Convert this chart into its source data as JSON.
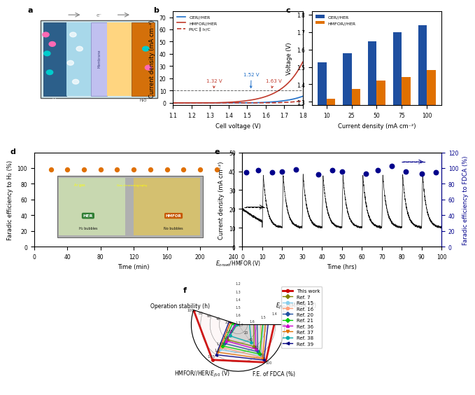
{
  "panel_b": {
    "xlabel": "Cell voltage (V)",
    "ylabel": "Current density (mA cm⁻²)",
    "xlim": [
      1.1,
      1.8
    ],
    "ylim": [
      -2,
      75
    ],
    "dashed_y": 10,
    "ann_1_32": {
      "x": 1.32,
      "label": "1.32 V",
      "color": "#c0392b"
    },
    "ann_1_52": {
      "x": 1.52,
      "label": "1.52 V",
      "color": "#1e6ec8"
    },
    "ann_1_63": {
      "x": 1.63,
      "label": "1.63 V",
      "color": "#c0392b"
    },
    "color_oer": "#1e6ec8",
    "color_hmfor": "#c0392b"
  },
  "panel_c": {
    "xlabel": "Current density (mA cm⁻²)",
    "ylabel": "Voltage (V)",
    "ylim": [
      1.28,
      1.82
    ],
    "yticks": [
      1.3,
      1.4,
      1.5,
      1.6,
      1.7,
      1.8
    ],
    "categories": [
      10,
      25,
      50,
      75,
      100
    ],
    "oer_her": [
      1.525,
      1.578,
      1.648,
      1.7,
      1.738
    ],
    "hmfor_her": [
      1.316,
      1.372,
      1.422,
      1.442,
      1.482
    ],
    "color_oer": "#1e4fa0",
    "color_hmfor": "#e07000"
  },
  "panel_d": {
    "xlabel": "Time (min)",
    "ylabel": "Faradic efficiency to H₂ (%)",
    "xlim": [
      0,
      240
    ],
    "ylim": [
      0,
      120
    ],
    "yticks": [
      0,
      20,
      40,
      60,
      80,
      100
    ],
    "xticks": [
      0,
      40,
      80,
      120,
      160,
      200,
      240
    ],
    "dot_times": [
      20,
      40,
      60,
      80,
      100,
      120,
      140,
      160,
      180,
      200,
      220
    ],
    "dot_values": [
      98,
      98,
      98,
      98,
      98,
      98,
      98,
      98,
      98,
      98,
      98
    ],
    "dot_color": "#e07000"
  },
  "panel_e": {
    "xlabel": "Time (hrs)",
    "ylabel_left": "Current density (mA cm⁻²)",
    "ylabel_right": "Faradic efficiency to FDCA (%)",
    "xlim": [
      0,
      100
    ],
    "ylim_left": [
      0,
      50
    ],
    "ylim_right": [
      0,
      120
    ],
    "xticks": [
      0,
      10,
      20,
      30,
      40,
      50,
      60,
      70,
      80,
      90,
      100
    ],
    "yticks_left": [
      0,
      10,
      20,
      30,
      40,
      50
    ],
    "yticks_right": [
      0,
      20,
      40,
      60,
      80,
      100,
      120
    ],
    "dot_times": [
      2,
      8,
      15,
      20,
      27,
      38,
      45,
      50,
      62,
      68,
      75,
      82,
      90,
      97
    ],
    "dot_values": [
      95,
      97,
      95,
      96,
      98,
      92,
      97,
      96,
      93,
      97,
      103,
      96,
      93,
      95
    ],
    "dot_color": "#00008b",
    "ann_x": 11,
    "ann_y": 21
  },
  "panel_f": {
    "axes_labels": [
      "E_onset/HMFOR (V)",
      "E_j50/HMFOR (V)",
      "F.E. of FDCA (%)",
      "HMFOR//HER/E_j50 (V)",
      "Operation stability (h)"
    ],
    "axes_short": [
      "onset_hmfor",
      "j50_hmfor",
      "fe_fdca",
      "hmfor_her_j50",
      "stability"
    ],
    "refs": [
      {
        "name": "This work",
        "color": "#cc0000",
        "linewidth": 2.0,
        "marker": "o",
        "onset_hmfor": 1.2,
        "j50_hmfor": 1.35,
        "fe_fdca": 100,
        "hmfor_her_j50": 1.42,
        "stability": 100
      },
      {
        "name": "Ref. 7",
        "color": "#808000",
        "linewidth": 1.0,
        "marker": "D",
        "onset_hmfor": 1.38,
        "j50_hmfor": 1.56,
        "fe_fdca": 58,
        "hmfor_her_j50": 1.58,
        "stability": 3
      },
      {
        "name": "Ref. 15",
        "color": "#87ceeb",
        "linewidth": 1.0,
        "marker": "o",
        "onset_hmfor": 1.28,
        "j50_hmfor": 1.46,
        "fe_fdca": 82,
        "hmfor_her_j50": 1.5,
        "stability": 10
      },
      {
        "name": "Ref. 16",
        "color": "#ffa07a",
        "linewidth": 1.0,
        "marker": "o",
        "onset_hmfor": 1.3,
        "j50_hmfor": 1.5,
        "fe_fdca": 88,
        "hmfor_her_j50": 1.52,
        "stability": 18
      },
      {
        "name": "Ref. 20",
        "color": "#1e4fa0",
        "linewidth": 1.0,
        "marker": "D",
        "onset_hmfor": 1.33,
        "j50_hmfor": 1.53,
        "fe_fdca": 72,
        "hmfor_her_j50": 1.55,
        "stability": 6
      },
      {
        "name": "Ref. 21",
        "color": "#00cc00",
        "linewidth": 1.0,
        "marker": "D",
        "onset_hmfor": 1.27,
        "j50_hmfor": 1.47,
        "fe_fdca": 78,
        "hmfor_her_j50": 1.53,
        "stability": 12
      },
      {
        "name": "Ref. 36",
        "color": "#cc00cc",
        "linewidth": 1.0,
        "marker": "^",
        "onset_hmfor": 1.35,
        "j50_hmfor": 1.55,
        "fe_fdca": 65,
        "hmfor_her_j50": 1.57,
        "stability": 5
      },
      {
        "name": "Ref. 37",
        "color": "#e07000",
        "linewidth": 1.0,
        "marker": "v",
        "onset_hmfor": 1.25,
        "j50_hmfor": 1.45,
        "fe_fdca": 90,
        "hmfor_her_j50": 1.48,
        "stability": 16
      },
      {
        "name": "Ref. 38",
        "color": "#00aaaa",
        "linewidth": 1.0,
        "marker": "o",
        "onset_hmfor": 1.4,
        "j50_hmfor": 1.6,
        "fe_fdca": 48,
        "hmfor_her_j50": 1.61,
        "stability": 2
      },
      {
        "name": "Ref. 39",
        "color": "#000080",
        "linewidth": 1.0,
        "marker": "<",
        "onset_hmfor": 1.22,
        "j50_hmfor": 1.42,
        "fe_fdca": 94,
        "hmfor_her_j50": 1.46,
        "stability": 20
      }
    ],
    "onset_range": [
      1.1,
      1.7
    ],
    "j50_range": [
      1.3,
      1.7
    ],
    "fe_range": [
      0,
      100
    ],
    "hmfor_range": [
      1.4,
      1.7
    ],
    "stab_range": [
      0,
      100
    ],
    "onset_ticks": [
      1.2,
      1.3,
      1.4,
      1.5,
      1.6,
      1.7
    ],
    "j50_ticks": [
      1.3,
      1.4,
      1.5,
      1.6,
      1.7
    ],
    "fe_ticks": [
      20,
      40,
      60,
      80,
      100
    ],
    "hmfor_ticks": [
      1.45,
      1.5,
      1.55,
      1.6,
      1.65
    ],
    "stab_ticks": [
      20,
      40,
      60,
      80,
      100
    ]
  }
}
